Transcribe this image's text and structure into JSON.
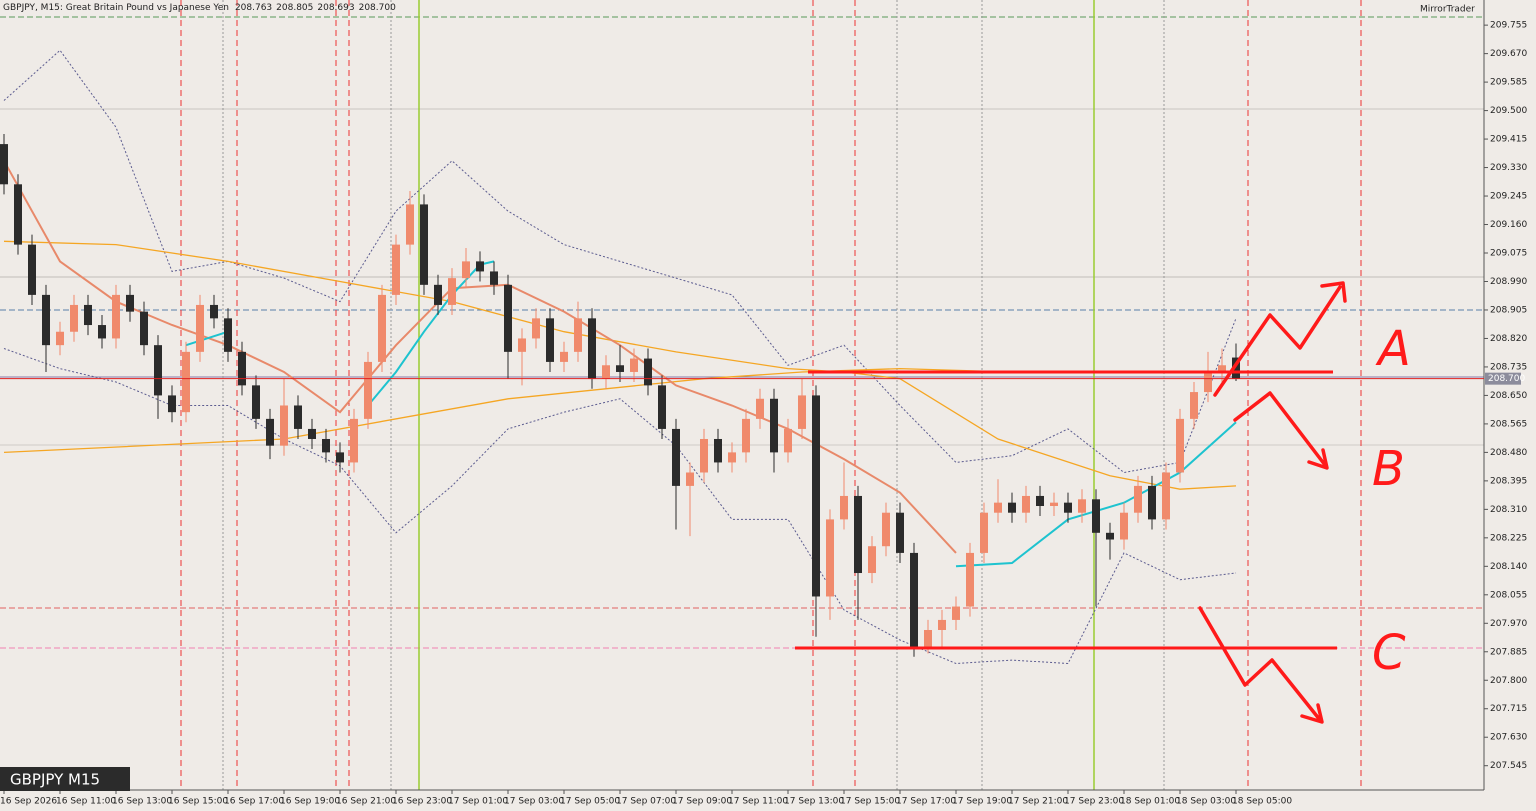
{
  "chart_data": {
    "type": "candlestick",
    "title": "GBPJPY, M15:  Great Britain Pound vs Japanese Yen",
    "last_ohlc_labels": [
      "208.763",
      "208.805",
      "208.693",
      "208.700"
    ],
    "watermark": "GBPJPY M15",
    "brand": "MirrorTrader",
    "up_color": "#f08a6c",
    "down_color": "#2b2b2b",
    "categories": [
      "16 Sep 2026",
      null,
      null,
      null,
      "16 Sep 11:00",
      null,
      null,
      null,
      "16 Sep 13:00",
      null,
      null,
      null,
      "16 Sep 15:00",
      null,
      null,
      null,
      "16 Sep 17:00",
      null,
      null,
      null,
      "16 Sep 19:00",
      null,
      null,
      null,
      "16 Sep 21:00",
      null,
      null,
      null,
      "16 Sep 23:00",
      null,
      null,
      null,
      "17 Sep 01:00",
      null,
      null,
      null,
      "17 Sep 03:00",
      null,
      null,
      null,
      "17 Sep 05:00",
      null,
      null,
      null,
      "17 Sep 07:00",
      null,
      null,
      null,
      "17 Sep 09:00",
      null,
      null,
      null,
      "17 Sep 11:00",
      null,
      null,
      null,
      "17 Sep 13:00",
      null,
      null,
      null,
      "17 Sep 15:00",
      null,
      null,
      null,
      "17 Sep 17:00",
      null,
      null,
      null,
      "17 Sep 19:00",
      null,
      null,
      null,
      "17 Sep 21:00",
      null,
      null,
      null,
      "17 Sep 23:00",
      null,
      null,
      null,
      "18 Sep 01:00",
      null,
      null,
      null,
      "18 Sep 03:00",
      null,
      null,
      null,
      "18 Sep 05:00"
    ],
    "open": [
      209.4,
      209.28,
      209.1,
      208.95,
      208.8,
      208.84,
      208.92,
      208.86,
      208.82,
      208.95,
      208.9,
      208.8,
      208.65,
      208.6,
      208.78,
      208.92,
      208.88,
      208.78,
      208.68,
      208.58,
      208.5,
      208.62,
      208.55,
      208.52,
      208.48,
      208.45,
      208.58,
      208.75,
      208.95,
      209.1,
      209.22,
      208.98,
      208.92,
      209.0,
      209.05,
      209.02,
      208.98,
      208.78,
      208.82,
      208.88,
      208.75,
      208.78,
      208.88,
      208.7,
      208.74,
      208.72,
      208.76,
      208.68,
      208.55,
      208.38,
      208.42,
      208.52,
      208.45,
      208.48,
      208.58,
      208.64,
      208.48,
      208.55,
      208.65,
      208.05,
      208.28,
      208.35,
      208.12,
      208.2,
      208.3,
      208.18,
      207.9,
      207.95,
      207.98,
      208.02,
      208.18,
      208.3,
      208.33,
      208.3,
      208.35,
      208.32,
      208.33,
      208.3,
      208.34,
      208.24,
      208.22,
      208.3,
      208.38,
      208.28,
      208.42,
      208.58,
      208.66,
      208.72,
      208.763
    ],
    "high": [
      209.43,
      209.31,
      209.13,
      208.98,
      208.87,
      208.95,
      208.95,
      208.89,
      208.98,
      208.98,
      208.93,
      208.83,
      208.68,
      208.81,
      208.95,
      208.95,
      208.91,
      208.81,
      208.71,
      208.61,
      208.7,
      208.65,
      208.58,
      208.55,
      208.51,
      208.61,
      208.78,
      208.98,
      209.13,
      209.26,
      209.25,
      209.01,
      209.03,
      209.09,
      209.08,
      209.05,
      209.01,
      208.85,
      208.91,
      208.91,
      208.81,
      208.93,
      208.91,
      208.77,
      208.8,
      208.79,
      208.79,
      208.71,
      208.58,
      208.45,
      208.55,
      208.55,
      208.51,
      208.61,
      208.67,
      208.67,
      208.58,
      208.7,
      208.68,
      208.31,
      208.45,
      208.38,
      208.23,
      208.33,
      208.33,
      208.21,
      207.98,
      208.01,
      208.05,
      208.21,
      208.33,
      208.4,
      208.36,
      208.38,
      208.38,
      208.36,
      208.36,
      208.37,
      208.37,
      208.27,
      208.33,
      208.41,
      208.41,
      208.45,
      208.61,
      208.69,
      208.78,
      208.79,
      208.805
    ],
    "low": [
      209.25,
      209.07,
      208.92,
      208.72,
      208.77,
      208.81,
      208.83,
      208.79,
      208.79,
      208.87,
      208.77,
      208.58,
      208.57,
      208.57,
      208.75,
      208.85,
      208.75,
      208.65,
      208.55,
      208.46,
      208.47,
      208.52,
      208.49,
      208.45,
      208.42,
      208.42,
      208.55,
      208.72,
      208.92,
      209.07,
      208.95,
      208.89,
      208.89,
      208.97,
      208.99,
      208.95,
      208.7,
      208.68,
      208.79,
      208.72,
      208.72,
      208.75,
      208.67,
      208.67,
      208.69,
      208.69,
      208.65,
      208.52,
      208.25,
      208.23,
      208.39,
      208.42,
      208.42,
      208.45,
      208.55,
      208.42,
      208.45,
      208.52,
      207.93,
      207.98,
      208.25,
      207.98,
      208.09,
      208.17,
      208.15,
      207.87,
      207.88,
      207.9,
      207.95,
      207.99,
      208.15,
      208.27,
      208.27,
      208.27,
      208.29,
      208.29,
      208.27,
      208.27,
      208.02,
      208.16,
      208.19,
      208.27,
      208.25,
      208.25,
      208.39,
      208.55,
      208.63,
      208.68,
      208.693
    ],
    "close": [
      209.28,
      209.1,
      208.95,
      208.8,
      208.84,
      208.92,
      208.86,
      208.82,
      208.95,
      208.9,
      208.8,
      208.65,
      208.6,
      208.78,
      208.92,
      208.88,
      208.78,
      208.68,
      208.58,
      208.5,
      208.62,
      208.55,
      208.52,
      208.48,
      208.45,
      208.58,
      208.75,
      208.95,
      209.1,
      209.22,
      208.98,
      208.92,
      209.0,
      209.05,
      209.02,
      208.98,
      208.78,
      208.82,
      208.88,
      208.75,
      208.78,
      208.88,
      208.7,
      208.74,
      208.72,
      208.76,
      208.68,
      208.55,
      208.38,
      208.42,
      208.52,
      208.45,
      208.48,
      208.58,
      208.64,
      208.48,
      208.55,
      208.65,
      208.05,
      208.28,
      208.35,
      208.12,
      208.2,
      208.3,
      208.18,
      207.9,
      207.95,
      207.98,
      208.02,
      208.18,
      208.3,
      208.33,
      208.3,
      208.35,
      208.32,
      208.33,
      208.3,
      208.34,
      208.24,
      208.22,
      208.3,
      208.38,
      208.28,
      208.42,
      208.58,
      208.66,
      208.72,
      208.74,
      208.7
    ],
    "indicators": [
      {
        "color": "#5b5b8f",
        "dash": "2 2",
        "width": 1,
        "x": [
          0,
          4,
          8,
          12,
          16,
          20,
          24,
          28,
          32,
          36,
          40,
          44,
          48,
          52,
          56,
          60,
          64,
          68,
          72,
          76,
          80,
          84,
          88
        ],
        "values": [
          209.53,
          209.68,
          209.45,
          209.02,
          209.05,
          209.0,
          208.93,
          209.2,
          209.35,
          209.2,
          209.1,
          209.05,
          209.0,
          208.95,
          208.74,
          208.8,
          208.62,
          208.45,
          208.47,
          208.55,
          208.42,
          208.45,
          208.88
        ]
      },
      {
        "color": "#5b5b8f",
        "dash": "2 2",
        "width": 1,
        "x": [
          0,
          4,
          8,
          12,
          16,
          20,
          24,
          28,
          32,
          36,
          40,
          44,
          48,
          52,
          56,
          60,
          64,
          68,
          72,
          76,
          80,
          84,
          88
        ],
        "values": [
          208.79,
          208.73,
          208.69,
          208.62,
          208.62,
          208.52,
          208.44,
          208.24,
          208.38,
          208.55,
          208.6,
          208.64,
          208.5,
          208.28,
          208.28,
          208.01,
          207.92,
          207.85,
          207.86,
          207.85,
          208.18,
          208.1,
          208.12
        ]
      },
      {
        "color": "#f5a623",
        "dash": "none",
        "width": 1.3,
        "x": [
          0,
          8,
          16,
          24,
          32,
          40,
          48,
          56,
          60,
          64,
          71,
          79,
          84,
          88
        ],
        "values": [
          209.11,
          209.1,
          209.05,
          208.99,
          208.93,
          208.84,
          208.78,
          208.73,
          208.72,
          208.7,
          208.52,
          208.41,
          208.37,
          208.38
        ]
      },
      {
        "color": "#f5a623",
        "dash": "none",
        "width": 1.3,
        "x": [
          0,
          20,
          36,
          50,
          57,
          64,
          72,
          78
        ],
        "values": [
          208.48,
          208.52,
          208.64,
          208.7,
          208.72,
          208.73,
          208.72,
          208.72
        ]
      },
      {
        "color": "#e8896a",
        "dash": "none",
        "width": 2,
        "x": [
          0,
          4,
          8,
          12,
          16,
          20,
          24,
          28,
          32,
          36,
          40,
          44,
          48,
          52,
          56,
          60,
          64,
          68
        ],
        "values": [
          209.35,
          209.05,
          208.93,
          208.86,
          208.8,
          208.72,
          208.6,
          208.8,
          208.97,
          208.98,
          208.9,
          208.8,
          208.68,
          208.62,
          208.55,
          208.46,
          208.36,
          208.18
        ]
      },
      {
        "color": "#1ec3cf",
        "dash": "none",
        "width": 2,
        "x": [
          13,
          16,
          20,
          26,
          28,
          30,
          32,
          34,
          35,
          50,
          68,
          72,
          76,
          80,
          84,
          88
        ],
        "values": [
          208.8,
          208.84,
          null,
          208.62,
          208.72,
          208.84,
          208.95,
          209.04,
          209.05,
          null,
          208.14,
          208.15,
          208.28,
          208.33,
          208.42,
          208.57
        ]
      }
    ],
    "current_price": 208.7,
    "current_price_label": "208.700",
    "annotations": [
      "A",
      "B",
      "C"
    ],
    "ylim": [
      207.4725,
      209.83
    ],
    "yticks": [
      209.755,
      {
        "value": 209.67,
        "label": "209.670"
      },
      209.585,
      {
        "value": 209.5,
        "label": "209.500"
      },
      209.415,
      {
        "value": 209.33,
        "label": "209.330"
      },
      209.245,
      {
        "value": 209.16,
        "label": "209.160"
      },
      209.075,
      {
        "value": 208.99,
        "label": "208.990"
      },
      208.905,
      {
        "value": 208.82,
        "label": "208.820"
      },
      208.735,
      {
        "value": 208.65,
        "label": "208.650"
      },
      208.565,
      {
        "value": 208.48,
        "label": "208.480"
      },
      208.395,
      {
        "value": 208.31,
        "label": "208.310"
      },
      208.225,
      {
        "value": 208.14,
        "label": "208.140"
      },
      208.055,
      {
        "value": 207.97,
        "label": "207.970"
      },
      207.885,
      {
        "value": 207.8,
        "label": "207.800"
      },
      207.715,
      {
        "value": 207.63,
        "label": "207.630"
      },
      207.545
    ]
  }
}
